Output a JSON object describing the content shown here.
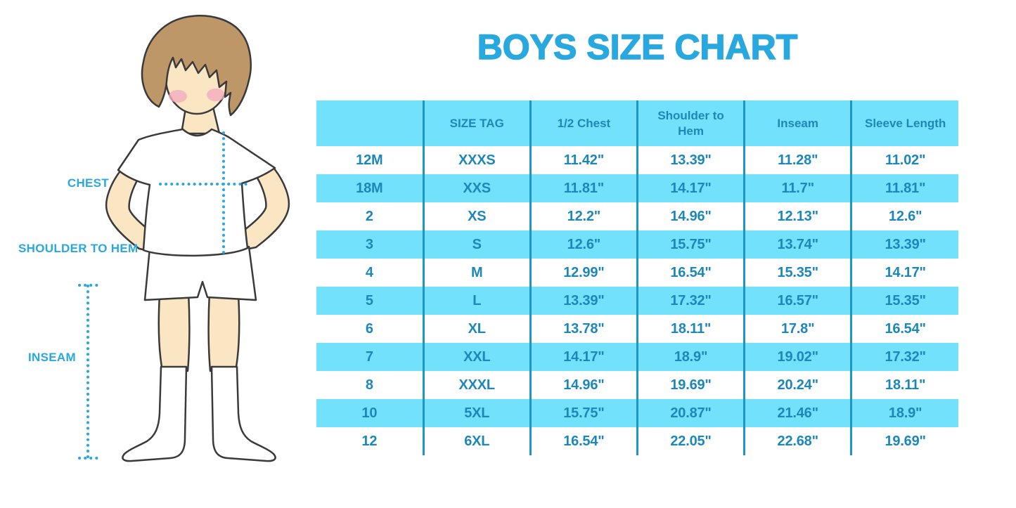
{
  "title": "BOYS SIZE CHART",
  "figure": {
    "labels": {
      "chest": "CHEST",
      "shoulder_to_hem": "SHOULDER TO HEM",
      "inseam": "INSEAM"
    }
  },
  "table": {
    "headers": [
      "",
      "SIZE TAG",
      "1/2 Chest",
      "Shoulder to Hem",
      "Inseam",
      "Sleeve Length"
    ],
    "rows": [
      [
        "12M",
        "XXXS",
        "11.42\"",
        "13.39\"",
        "11.28\"",
        "11.02\""
      ],
      [
        "18M",
        "XXS",
        "11.81\"",
        "14.17\"",
        "11.7\"",
        "11.81\""
      ],
      [
        "2",
        "XS",
        "12.2\"",
        "14.96\"",
        "12.13\"",
        "12.6\""
      ],
      [
        "3",
        "S",
        "12.6\"",
        "15.75\"",
        "13.74\"",
        "13.39\""
      ],
      [
        "4",
        "M",
        "12.99\"",
        "16.54\"",
        "15.35\"",
        "14.17\""
      ],
      [
        "5",
        "L",
        "13.39\"",
        "17.32\"",
        "16.57\"",
        "15.35\""
      ],
      [
        "6",
        "XL",
        "13.78\"",
        "18.11\"",
        "17.8\"",
        "16.54\""
      ],
      [
        "7",
        "XXL",
        "14.17\"",
        "18.9\"",
        "19.02\"",
        "17.32\""
      ],
      [
        "8",
        "XXXL",
        "14.96\"",
        "19.69\"",
        "20.24\"",
        "18.11\""
      ],
      [
        "10",
        "5XL",
        "15.75\"",
        "20.87\"",
        "21.46\"",
        "18.9\""
      ],
      [
        "12",
        "6XL",
        "16.54\"",
        "22.05\"",
        "22.68\"",
        "19.69\""
      ]
    ]
  },
  "colors": {
    "accent": "#29A8E0",
    "table_stripe": "#72E2FC",
    "table_divider": "#1E96C8",
    "table_text": "#1D87BC",
    "skin": "#FBE6C3",
    "hair": "#BE9769",
    "cheek": "#F2ACC0",
    "outline": "#3A3A3A"
  }
}
